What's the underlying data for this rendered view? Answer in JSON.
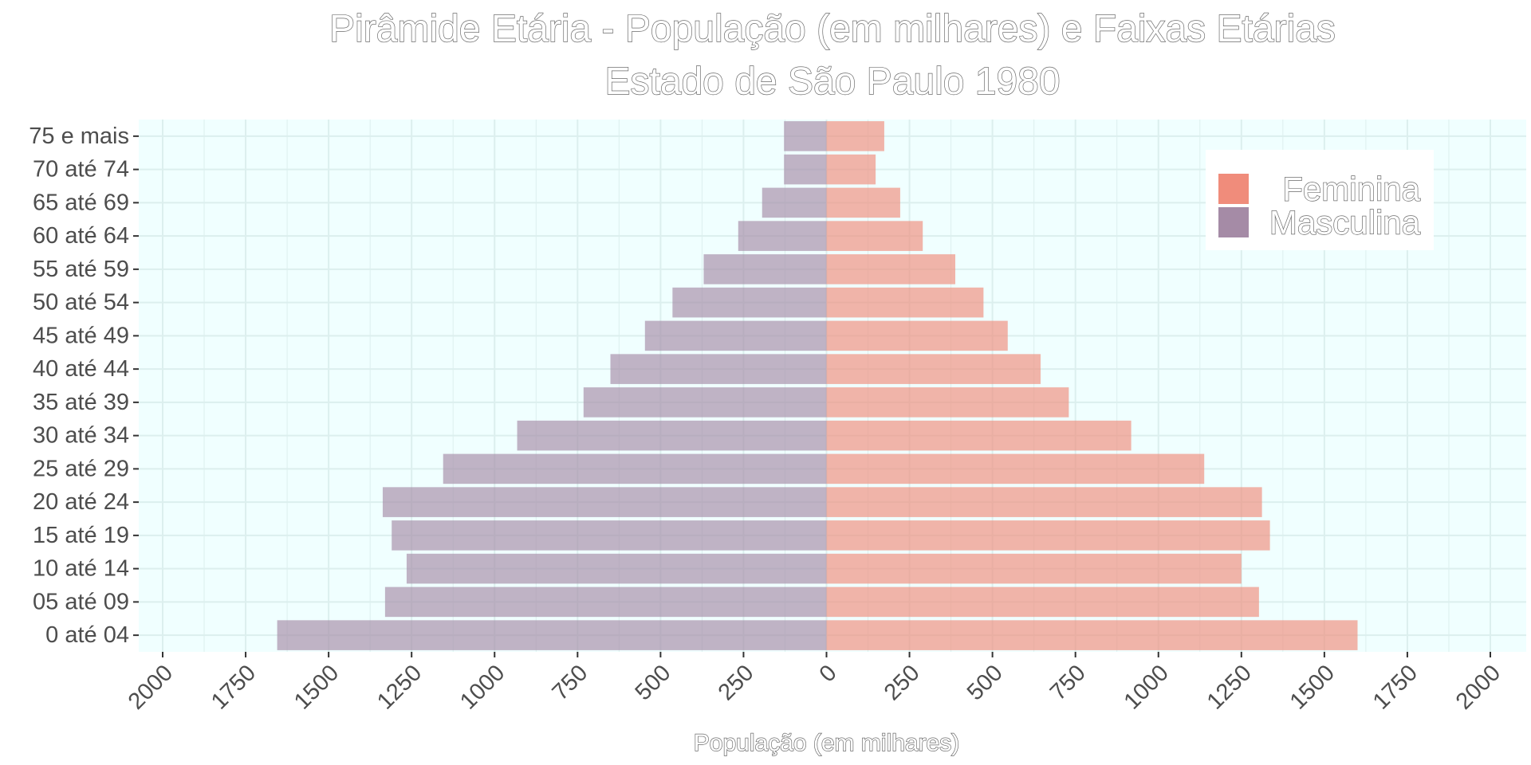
{
  "chart_data": {
    "type": "bar",
    "orientation": "horizontal",
    "title": "Pirâmide Etária - População (em milhares) e Faixas Etárias",
    "subtitle": "Estado de São Paulo 1980",
    "xlabel": "População (em milhares)",
    "ylabel": "",
    "xlim": [
      -2000,
      2000
    ],
    "x_ticks": [
      -2000,
      -1750,
      -1500,
      -1250,
      -1000,
      -750,
      -500,
      -250,
      0,
      250,
      500,
      750,
      1000,
      1250,
      1500,
      1750,
      2000
    ],
    "x_tick_labels": [
      "2000",
      "1750",
      "1500",
      "1250",
      "1000",
      "750",
      "500",
      "250",
      "0",
      "250",
      "500",
      "750",
      "1000",
      "1250",
      "1500",
      "1750",
      "2000"
    ],
    "categories": [
      "0 até 04",
      "05 até 09",
      "10 até 14",
      "15 até 19",
      "20 até 24",
      "25 até 29",
      "30 até 34",
      "35 até 39",
      "40 até 44",
      "45 até 49",
      "50 até 54",
      "55 até 59",
      "60 até 64",
      "65 até 69",
      "70 até 74",
      "75 e mais"
    ],
    "series": [
      {
        "name": "Feminina",
        "color": "#f08c7b",
        "values": [
          1600,
          1303,
          1250,
          1336,
          1312,
          1138,
          918,
          730,
          645,
          546,
          473,
          388,
          290,
          222,
          148,
          174
        ]
      },
      {
        "name": "Masculina",
        "color": "#a58ba6",
        "values": [
          -1655,
          -1330,
          -1265,
          -1310,
          -1337,
          -1155,
          -932,
          -732,
          -651,
          -547,
          -464,
          -370,
          -266,
          -194,
          -128,
          -128
        ]
      }
    ],
    "legend_position": "top-right",
    "grid": true,
    "panel_background": "#f0ffff",
    "bar_opacity": 0.65
  }
}
